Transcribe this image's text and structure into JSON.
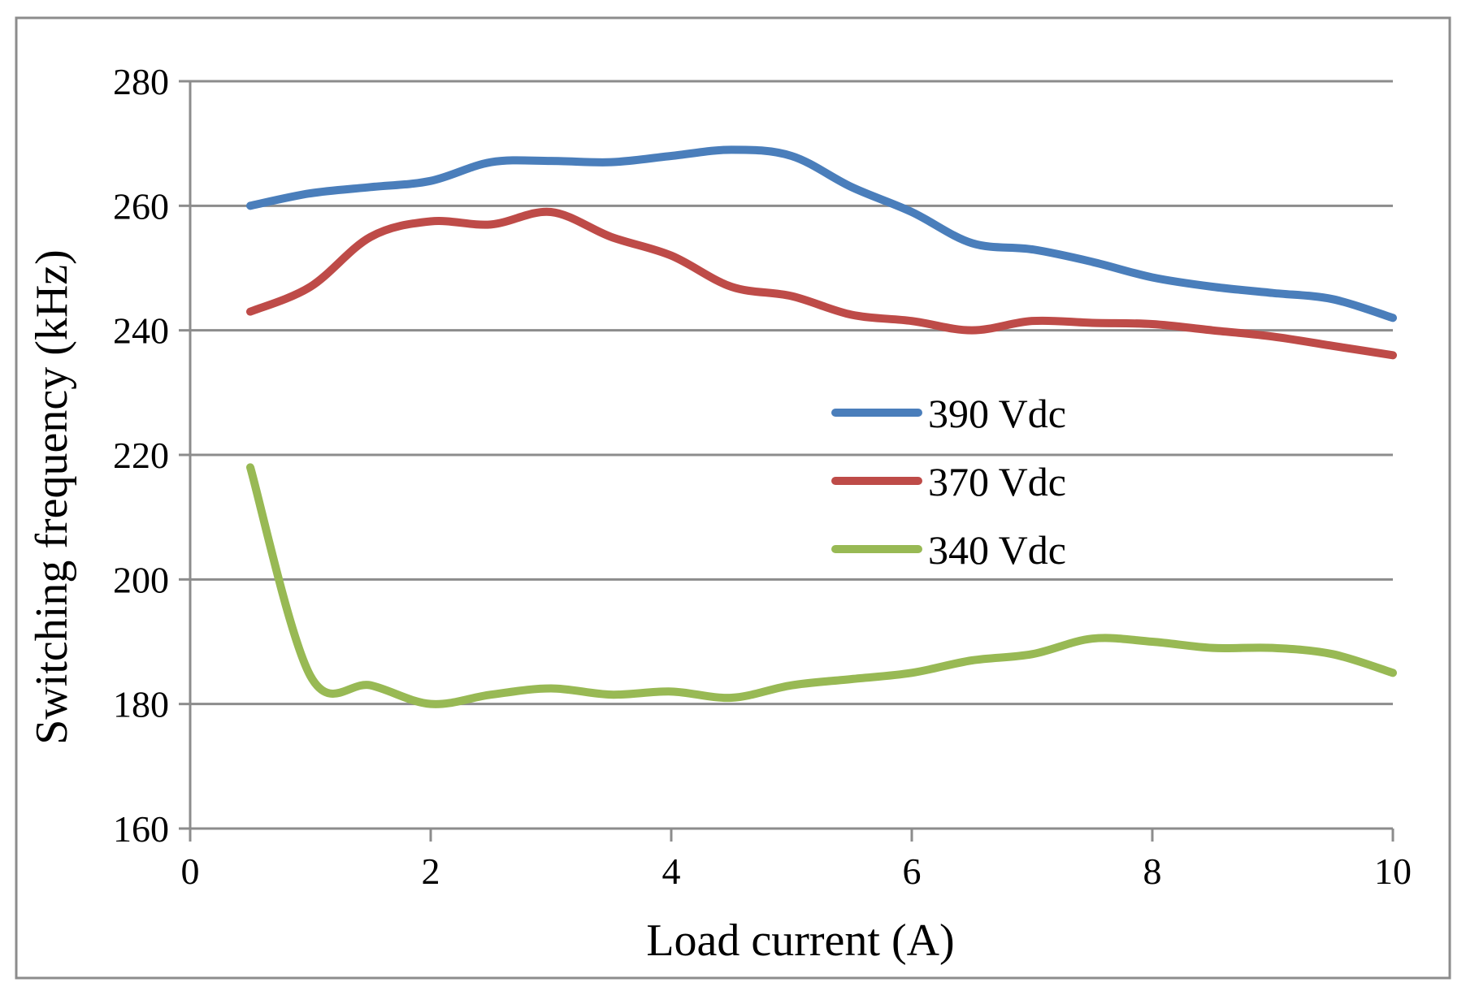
{
  "chart_data": {
    "type": "line",
    "title": "",
    "xlabel": "Load current (A)",
    "ylabel": "Switching frequency (kHz)",
    "xlim": [
      0,
      10
    ],
    "ylim": [
      160,
      280
    ],
    "xticks": [
      0,
      2,
      4,
      6,
      8,
      10
    ],
    "yticks": [
      160,
      180,
      200,
      220,
      240,
      260,
      280
    ],
    "grid": "horizontal",
    "legend_position": "center-right",
    "colors": {
      "390 Vdc": "#4a7ebb",
      "370 Vdc": "#be4b48",
      "340 Vdc": "#98b954",
      "grid": "#8c8c8c",
      "frame": "#8c8c8c"
    },
    "series": [
      {
        "name": "390 Vdc",
        "x": [
          0.5,
          1.0,
          1.5,
          2.0,
          2.5,
          3.0,
          3.5,
          4.0,
          4.5,
          5.0,
          5.5,
          6.0,
          6.5,
          7.0,
          7.5,
          8.0,
          8.5,
          9.0,
          9.5,
          10.0
        ],
        "values": [
          260,
          262,
          263,
          264,
          267,
          267.2,
          267,
          268,
          269,
          268,
          263,
          259,
          254,
          253,
          251,
          248.5,
          247,
          246,
          245,
          242
        ]
      },
      {
        "name": "370 Vdc",
        "x": [
          0.5,
          1.0,
          1.5,
          2.0,
          2.5,
          3.0,
          3.5,
          4.0,
          4.5,
          5.0,
          5.5,
          6.0,
          6.5,
          7.0,
          7.5,
          8.0,
          8.5,
          9.0,
          9.5,
          10.0
        ],
        "values": [
          243,
          247,
          255,
          257.5,
          257,
          259,
          255,
          252,
          247,
          245.5,
          242.5,
          241.5,
          240,
          241.5,
          241.2,
          241,
          240,
          239,
          237.5,
          236
        ]
      },
      {
        "name": "340 Vdc",
        "x": [
          0.5,
          1.0,
          1.5,
          2.0,
          2.5,
          3.0,
          3.5,
          4.0,
          4.5,
          5.0,
          5.5,
          6.0,
          6.5,
          7.0,
          7.5,
          8.0,
          8.5,
          9.0,
          9.5,
          10.0
        ],
        "values": [
          218,
          184.5,
          183,
          180,
          181.5,
          182.5,
          181.5,
          182,
          181,
          183,
          184,
          185,
          187,
          188,
          190.5,
          190,
          189,
          189,
          188,
          185
        ]
      }
    ]
  }
}
